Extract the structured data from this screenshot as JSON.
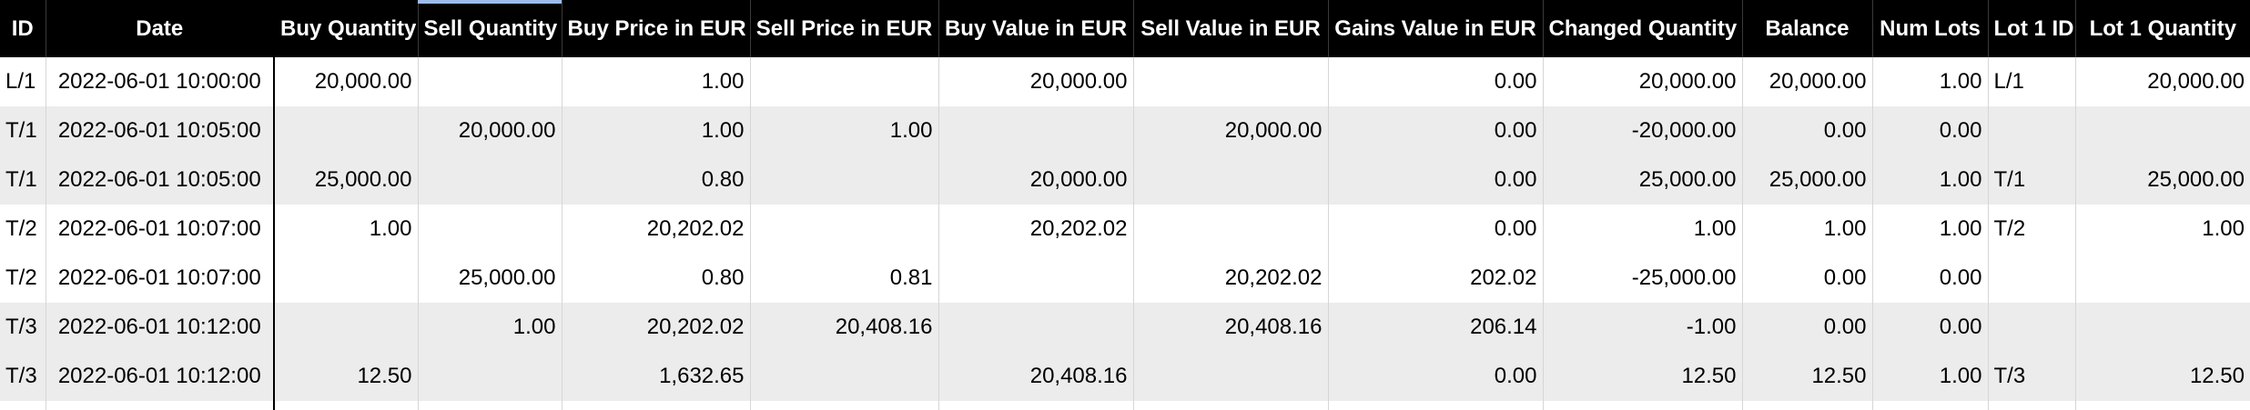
{
  "sheet": {
    "columns": [
      "ID",
      "Date",
      "Buy Quantity",
      "Sell Quantity",
      "Buy Price in EUR",
      "Sell Price in EUR",
      "Buy Value in EUR",
      "Sell Value in EUR",
      "Gains Value in EUR",
      "Changed Quantity",
      "Balance",
      "Num Lots",
      "Lot 1 ID",
      "Lot 1 Quantity"
    ],
    "rows": [
      [
        "L/1",
        "2022-06-01 10:00:00",
        "20,000.00",
        "",
        "1.00",
        "",
        "20,000.00",
        "",
        "0.00",
        "20,000.00",
        "20,000.00",
        "1.00",
        "L/1",
        "20,000.00"
      ],
      [
        "T/1",
        "2022-06-01 10:05:00",
        "",
        "20,000.00",
        "1.00",
        "1.00",
        "",
        "20,000.00",
        "0.00",
        "-20,000.00",
        "0.00",
        "0.00",
        "",
        ""
      ],
      [
        "T/1",
        "2022-06-01 10:05:00",
        "25,000.00",
        "",
        "0.80",
        "",
        "20,000.00",
        "",
        "0.00",
        "25,000.00",
        "25,000.00",
        "1.00",
        "T/1",
        "25,000.00"
      ],
      [
        "T/2",
        "2022-06-01 10:07:00",
        "1.00",
        "",
        "20,202.02",
        "",
        "20,202.02",
        "",
        "0.00",
        "1.00",
        "1.00",
        "1.00",
        "T/2",
        "1.00"
      ],
      [
        "T/2",
        "2022-06-01 10:07:00",
        "",
        "25,000.00",
        "0.80",
        "0.81",
        "",
        "20,202.02",
        "202.02",
        "-25,000.00",
        "0.00",
        "0.00",
        "",
        ""
      ],
      [
        "T/3",
        "2022-06-01 10:12:00",
        "",
        "1.00",
        "20,202.02",
        "20,408.16",
        "",
        "20,408.16",
        "206.14",
        "-1.00",
        "0.00",
        "0.00",
        "",
        ""
      ],
      [
        "T/3",
        "2022-06-01 10:12:00",
        "12.50",
        "",
        "1,632.65",
        "",
        "20,408.16",
        "",
        "0.00",
        "12.50",
        "12.50",
        "1.00",
        "T/3",
        "12.50"
      ]
    ]
  }
}
